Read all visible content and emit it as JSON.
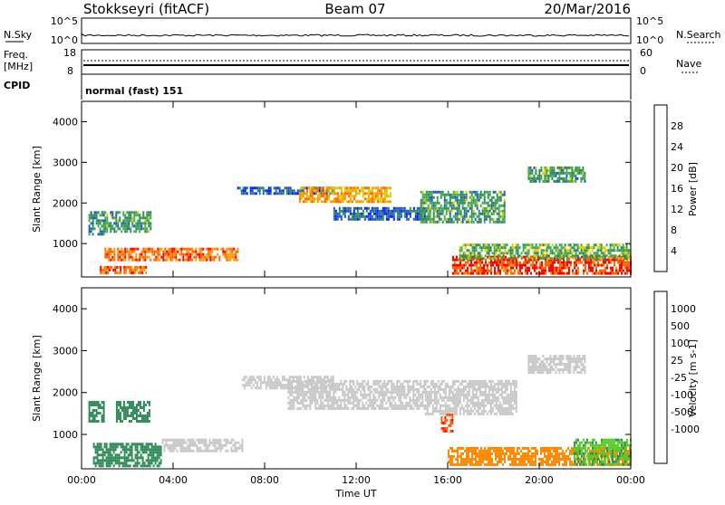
{
  "header": {
    "station": "Stokkseyri (fitACF)",
    "beam": "Beam 07",
    "date": "20/Mar/2016"
  },
  "noise_panel": {
    "left_label": "N.Sky",
    "right_label": "N.Search",
    "left_ticks": [
      "10^5",
      "10^0"
    ],
    "right_ticks": [
      "10^5",
      "10^0"
    ]
  },
  "freq_panel": {
    "left_label_1": "Freq.",
    "left_label_2": "[MHz]",
    "left_ticks": [
      "18",
      "8"
    ],
    "right_label": "Nave",
    "right_ticks": [
      "60",
      "0"
    ]
  },
  "cpid_panel": {
    "label": "CPID",
    "value": "normal (fast) 151"
  },
  "colors": {
    "power_scale": [
      "#0022ee",
      "#2255cc",
      "#2e8b57",
      "#44aa55",
      "#ddcc00",
      "#ff9900",
      "#ff6600",
      "#ff0000"
    ],
    "velocity_scale": [
      "#ff0000",
      "#ff5500",
      "#ff8800",
      "#ffbb22",
      "#c8c8c8",
      "#c8c8c8",
      "#55cc22",
      "#2e8b57",
      "#1155bb",
      "#0000ff"
    ],
    "ground_scatter": "#c8c8c8"
  },
  "chart_data": [
    {
      "type": "heatmap",
      "title": "",
      "xlabel": "",
      "ylabel": "Slant Range [km]",
      "xlim": [
        "00:00",
        "24:00"
      ],
      "ylim": [
        180,
        4500
      ],
      "x_ticks": [
        "00:00",
        "04:00",
        "08:00",
        "12:00",
        "16:00",
        "20:00",
        "00:00"
      ],
      "y_ticks": [
        1000,
        2000,
        3000,
        4000
      ],
      "colorbar": {
        "label": "Power [dB]",
        "ticks": [
          4,
          8,
          12,
          16,
          20,
          24,
          28
        ],
        "range": [
          0,
          32
        ]
      },
      "regions": [
        {
          "t": [
            0.3,
            1.0
          ],
          "r": [
            1200,
            1800
          ],
          "v": 10
        },
        {
          "t": [
            1.0,
            3.0
          ],
          "r": [
            1300,
            1800
          ],
          "v": 12
        },
        {
          "t": [
            0.8,
            2.8
          ],
          "r": [
            250,
            450
          ],
          "v": 26
        },
        {
          "t": [
            1.0,
            6.8
          ],
          "r": [
            600,
            900
          ],
          "v": 25
        },
        {
          "t": [
            6.8,
            11.0
          ],
          "r": [
            2200,
            2400
          ],
          "v": 6
        },
        {
          "t": [
            9.5,
            13.5
          ],
          "r": [
            2050,
            2400
          ],
          "v": 22
        },
        {
          "t": [
            11.0,
            15.0
          ],
          "r": [
            1600,
            1900
          ],
          "v": 6
        },
        {
          "t": [
            14.8,
            18.5
          ],
          "r": [
            1550,
            2300
          ],
          "v": 12
        },
        {
          "t": [
            16.2,
            24.0
          ],
          "r": [
            250,
            700
          ],
          "v": 28
        },
        {
          "t": [
            16.5,
            24.0
          ],
          "r": [
            650,
            1000
          ],
          "v": 14
        },
        {
          "t": [
            19.5,
            22.0
          ],
          "r": [
            2500,
            2900
          ],
          "v": 12
        }
      ]
    },
    {
      "type": "heatmap",
      "title": "",
      "xlabel": "Time UT",
      "ylabel": "Slant Range [km]",
      "xlim": [
        "00:00",
        "24:00"
      ],
      "ylim": [
        180,
        4500
      ],
      "x_ticks": [
        "00:00",
        "04:00",
        "08:00",
        "12:00",
        "16:00",
        "20:00",
        "00:00"
      ],
      "y_ticks": [
        1000,
        2000,
        3000,
        4000
      ],
      "colorbar": {
        "label": "Velocity [m s-1]",
        "ticks": [
          1000,
          500,
          100,
          25,
          -25,
          -100,
          -500,
          -1000
        ]
      },
      "regions": [
        {
          "t": [
            0.3,
            1.0
          ],
          "r": [
            1300,
            1800
          ],
          "v": 300
        },
        {
          "t": [
            1.5,
            3.0
          ],
          "r": [
            1300,
            1800
          ],
          "v": 200
        },
        {
          "t": [
            0.5,
            3.5
          ],
          "r": [
            250,
            800
          ],
          "v": 200
        },
        {
          "t": [
            3.5,
            7.0
          ],
          "r": [
            600,
            900
          ],
          "v": 0
        },
        {
          "t": [
            7.0,
            11.0
          ],
          "r": [
            2100,
            2400
          ],
          "v": 0
        },
        {
          "t": [
            9.0,
            15.0
          ],
          "r": [
            1650,
            2300
          ],
          "v": 0
        },
        {
          "t": [
            15.0,
            19.0
          ],
          "r": [
            1500,
            2300
          ],
          "v": 0
        },
        {
          "t": [
            15.7,
            16.2
          ],
          "r": [
            1100,
            1500
          ],
          "v": -800
        },
        {
          "t": [
            16.0,
            24.0
          ],
          "r": [
            300,
            700
          ],
          "v": -300
        },
        {
          "t": [
            21.5,
            24.0
          ],
          "r": [
            300,
            900
          ],
          "v": 80
        },
        {
          "t": [
            19.5,
            22.0
          ],
          "r": [
            2500,
            2900
          ],
          "v": 0
        }
      ]
    }
  ]
}
